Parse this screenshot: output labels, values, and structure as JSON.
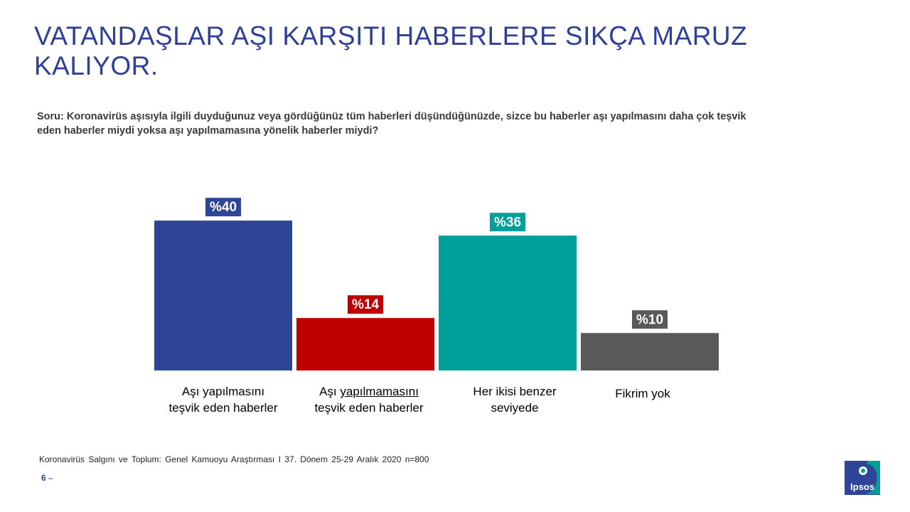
{
  "title": {
    "line1": "VATANDAŞLAR AŞI KARŞITI HABERLERE SIKÇA MARUZ",
    "line2": "KALIYOR."
  },
  "question": {
    "line1": "Soru: Koronavirüs aşısıyla ilgili  duyduğunuz veya gördüğünüz tüm haberleri düşündüğünüzde, sizce bu haberler aşı yapılmasını daha çok teşvik",
    "line2": "eden haberler miydi yoksa aşı yapılmamasına yönelik haberler miydi?"
  },
  "chart_data": {
    "type": "bar",
    "categories": [
      "Aşı yapılmasını teşvik eden haberler",
      "Aşı yapılmamasını teşvik eden haberler",
      "Her ikisi benzer seviyede",
      "Fikrim yok"
    ],
    "values": [
      40,
      14,
      36,
      10
    ],
    "value_labels": [
      "%40",
      "%14",
      "%36",
      "%10"
    ],
    "colors": [
      "#2e4496",
      "#c00000",
      "#00a09a",
      "#595959"
    ],
    "ylim": [
      0,
      40
    ]
  },
  "labels": {
    "c1": {
      "a": "Aşı yapılmasını",
      "b": "teşvik eden haberler"
    },
    "c2": {
      "a_pre": "Aşı ",
      "a_u": "yapılmamasını",
      "b": "teşvik eden haberler"
    },
    "c3": {
      "a": "Her ikisi benzer",
      "b": "seviyede"
    },
    "c4": {
      "a": "Fikrim yok"
    }
  },
  "footer": {
    "source": "Koronavirüs  Salgını  ve  Toplum:  Genel  Kamuoyu  Araştırması  I   37.  Dönem  25-29  Aralık  2020    n=800",
    "page_number": "6",
    "page_dash": "–"
  },
  "logo": {
    "text": "Ipsos",
    "color_main": "#2e4496",
    "color_accent": "#00a09a"
  }
}
